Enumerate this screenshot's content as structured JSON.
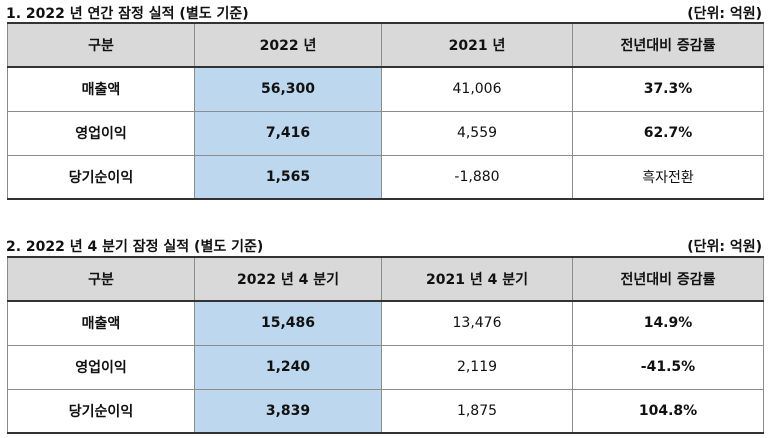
{
  "annual": {
    "title": "1. 2022 년 연간 잠정 실적 (별도 기준)",
    "unit": "(단위: 억원)",
    "headers": [
      "구분",
      "2022 년",
      "2021 년",
      "전년대비 증감률"
    ],
    "rows": [
      {
        "label": "매출액",
        "y2022": "56,300",
        "y2021": "41,006",
        "change": "37.3%"
      },
      {
        "label": "영업이익",
        "y2022": "7,416",
        "y2021": "4,559",
        "change": "62.7%"
      },
      {
        "label": "당기순이익",
        "y2022": "1,565",
        "y2021": "-1,880",
        "change": "흑자전환"
      }
    ]
  },
  "q4": {
    "title": "2. 2022 년 4 분기 잠정 실적 (별도 기준)",
    "unit": "(단위: 억원)",
    "headers": [
      "구분",
      "2022 년 4 분기",
      "2021 년 4 분기",
      "전년대비 증감률"
    ],
    "rows": [
      {
        "label": "매출액",
        "y2022": "15,486",
        "y2021": "13,476",
        "change": "14.9%"
      },
      {
        "label": "영업이익",
        "y2022": "1,240",
        "y2021": "2,119",
        "change": "-41.5%"
      },
      {
        "label": "당기순이익",
        "y2022": "3,839",
        "y2021": "1,875",
        "change": "104.8%"
      }
    ]
  },
  "colors": {
    "header_bg": "#d9d9d9",
    "highlight_bg": "#bdd7ee"
  }
}
